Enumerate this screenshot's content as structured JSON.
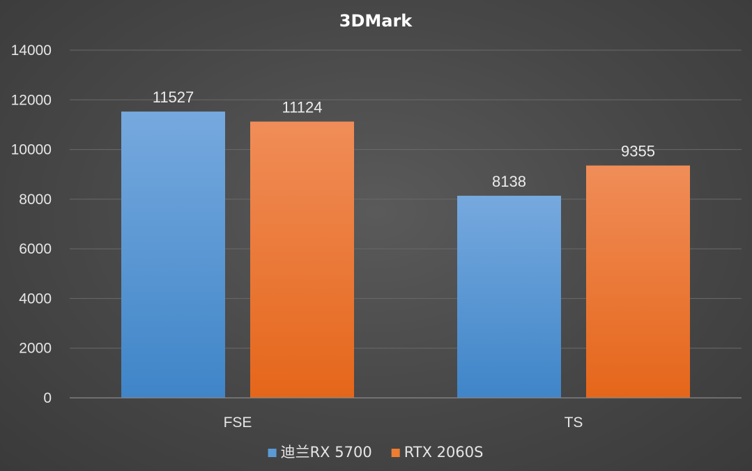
{
  "chart_data": {
    "type": "bar",
    "title": "3DMark",
    "categories": [
      "FSE",
      "TS"
    ],
    "series": [
      {
        "name": "迪兰RX 5700",
        "values": [
          11527,
          8138
        ],
        "color": "#5b9bd5"
      },
      {
        "name": "RTX 2060S",
        "values": [
          11124,
          9355
        ],
        "color": "#ed7d31"
      }
    ],
    "ylim": [
      0,
      14000
    ],
    "yticks": [
      0,
      2000,
      4000,
      6000,
      8000,
      10000,
      12000,
      14000
    ],
    "grid": true,
    "legend": "bottom",
    "data_labels": true
  }
}
